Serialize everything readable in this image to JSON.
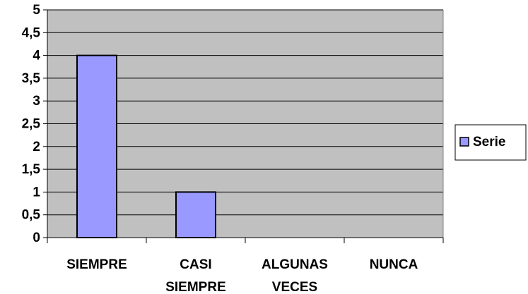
{
  "chart_data": {
    "type": "bar",
    "categories": [
      "SIEMPRE",
      "CASI SIEMPRE",
      "ALGUNAS VECES",
      "NUNCA"
    ],
    "category_lines": [
      [
        "SIEMPRE"
      ],
      [
        "CASI",
        "SIEMPRE"
      ],
      [
        "ALGUNAS",
        "VECES"
      ],
      [
        "NUNCA"
      ]
    ],
    "series": [
      {
        "name": "Serie",
        "values": [
          4,
          1,
          0,
          0
        ]
      }
    ],
    "yticks": [
      "0",
      "0,5",
      "1",
      "1,5",
      "2",
      "2,5",
      "3",
      "3,5",
      "4",
      "4,5",
      "5"
    ],
    "ylim": [
      0,
      5
    ],
    "grid": true,
    "legend_position": "right",
    "colors": {
      "bar_fill": "#9999FF",
      "bar_stroke": "#000000",
      "plot_background": "#C0C0C0",
      "gridline": "#000000"
    }
  }
}
